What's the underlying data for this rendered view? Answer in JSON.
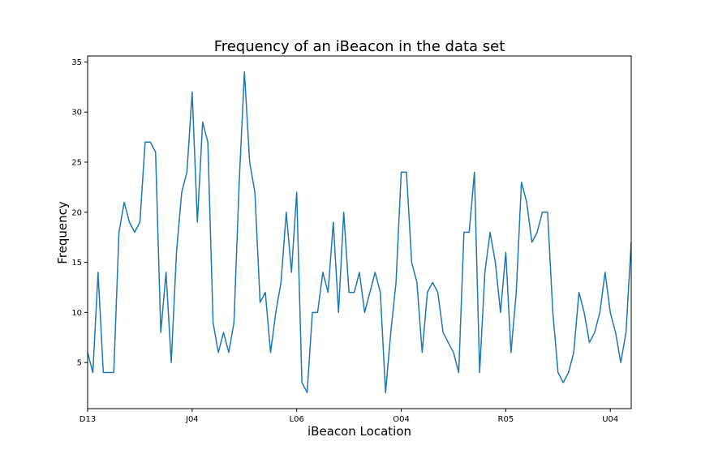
{
  "chart_data": {
    "type": "line",
    "title": "Frequency of an iBeacon in the data set",
    "xlabel": "iBeacon Location",
    "ylabel": "Frequency",
    "x_tick_labels": [
      {
        "index": 0,
        "label": "D13"
      },
      {
        "index": 20,
        "label": "J04"
      },
      {
        "index": 40,
        "label": "L06"
      },
      {
        "index": 60,
        "label": "O04"
      },
      {
        "index": 80,
        "label": "R05"
      },
      {
        "index": 100,
        "label": "U04"
      }
    ],
    "y_ticks": [
      5,
      10,
      15,
      20,
      25,
      30,
      35
    ],
    "xlim": [
      0,
      104
    ],
    "ylim": [
      0.4,
      35.6
    ],
    "grid": false,
    "line_color": "#1f77b4",
    "series": [
      {
        "values": [
          6,
          4,
          14,
          4,
          4,
          4,
          18,
          21,
          19,
          18,
          19,
          27,
          27,
          26,
          8,
          14,
          5,
          16,
          22,
          24,
          32,
          19,
          29,
          27,
          9,
          6,
          8,
          6,
          9,
          23,
          34,
          25,
          22,
          11,
          12,
          6,
          10,
          13,
          20,
          14,
          22,
          3,
          2,
          10,
          10,
          14,
          12,
          19,
          10,
          20,
          12,
          12,
          14,
          10,
          12,
          14,
          12,
          2,
          8,
          13,
          24,
          24,
          15,
          13,
          6,
          12,
          13,
          12,
          8,
          7,
          6,
          4,
          18,
          18,
          24,
          4,
          14,
          18,
          15,
          10,
          16,
          6,
          12,
          23,
          21,
          17,
          18,
          20,
          20,
          10,
          4,
          3,
          4,
          6,
          12,
          10,
          7,
          8,
          10,
          14,
          10,
          8,
          5,
          8,
          17
        ]
      }
    ]
  }
}
